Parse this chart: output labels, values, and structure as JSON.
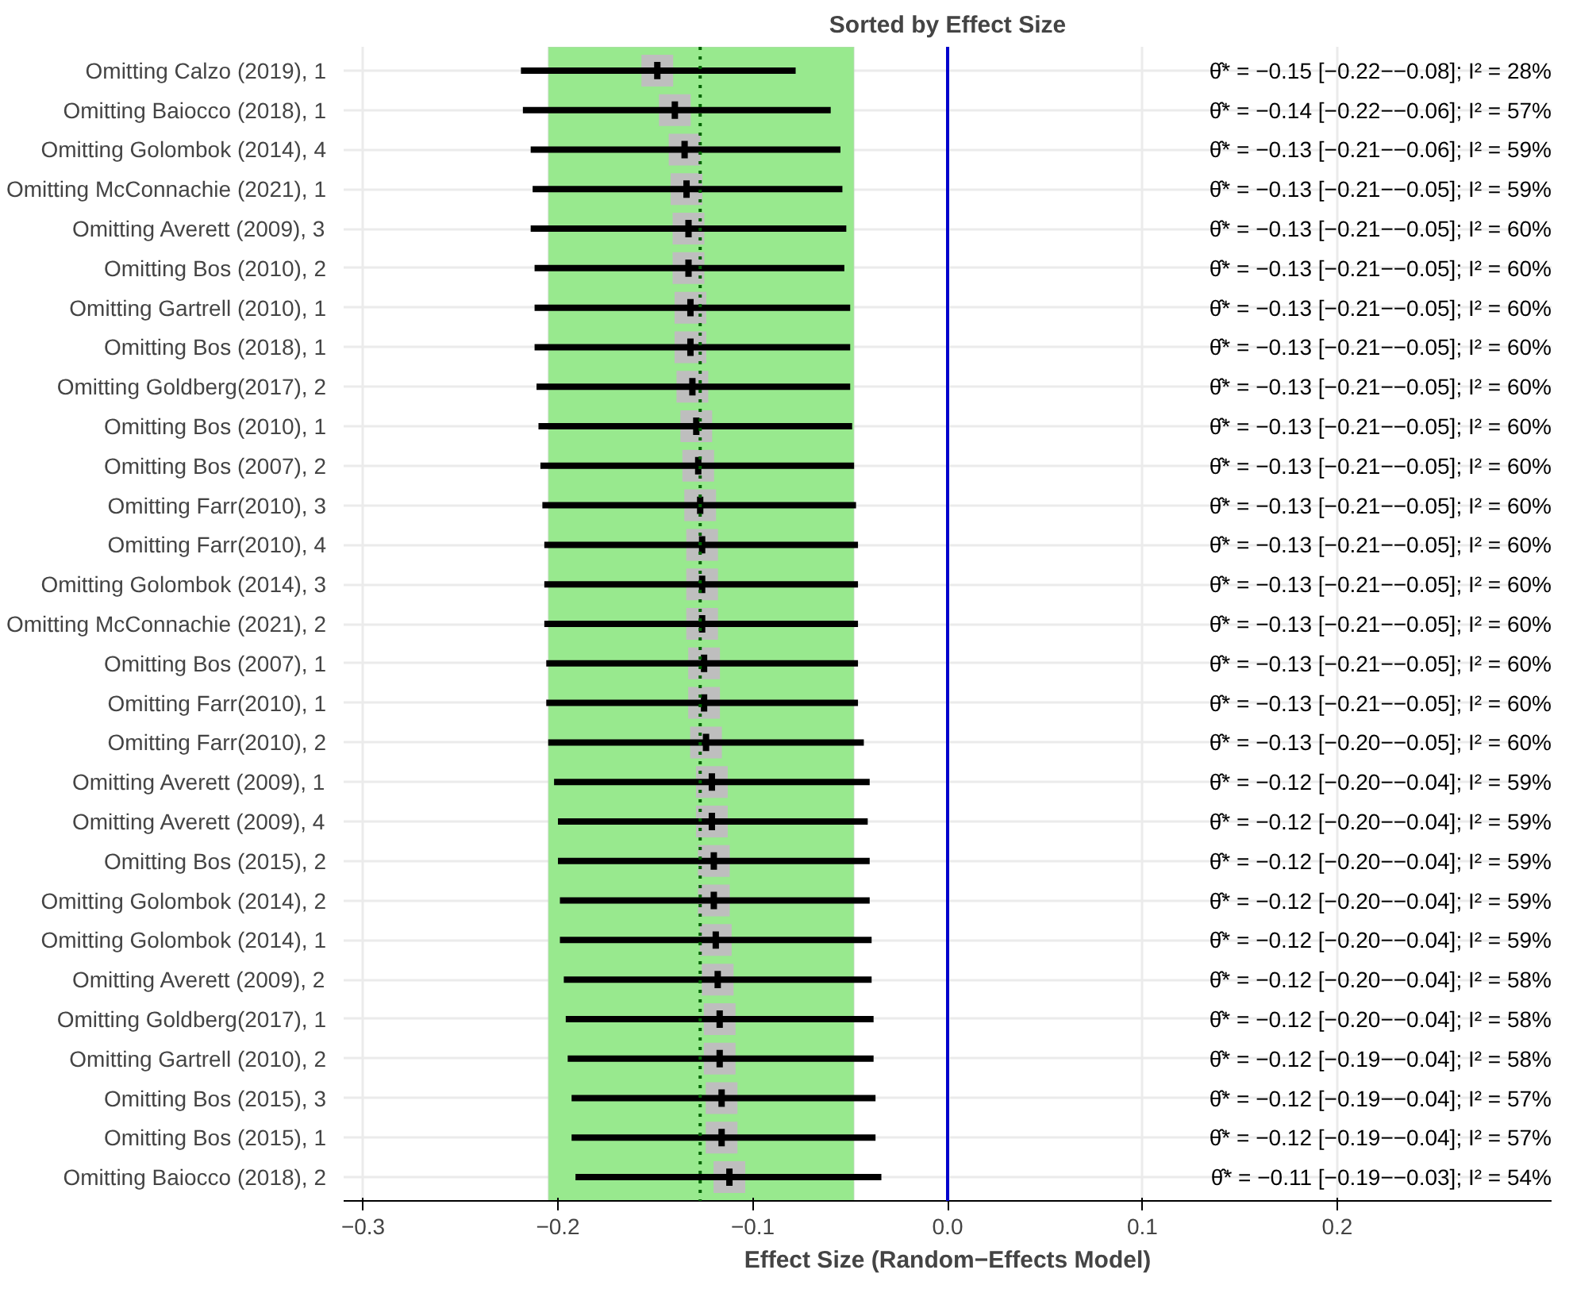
{
  "chart_data": {
    "type": "scatter",
    "orientation": "horizontal",
    "title": "Sorted by Effect Size",
    "xlabel": "Effect Size (Random−Effects Model)",
    "categories": [
      "Omitting Calzo (2019), 1",
      "Omitting Baiocco (2018), 1",
      "Omitting Golombok (2014), 4",
      "Omitting McConnachie (2021), 1",
      "Omitting Averett (2009), 3",
      "Omitting Bos (2010), 2",
      "Omitting Gartrell (2010), 1",
      "Omitting Bos (2018), 1",
      "Omitting Goldberg(2017), 2",
      "Omitting Bos (2010), 1",
      "Omitting Bos (2007), 2",
      "Omitting Farr(2010), 3",
      "Omitting Farr(2010), 4",
      "Omitting Golombok (2014), 3",
      "Omitting McConnachie (2021), 2",
      "Omitting Bos (2007), 1",
      "Omitting Farr(2010), 1",
      "Omitting Farr(2010), 2",
      "Omitting Averett (2009), 1",
      "Omitting Averett (2009), 4",
      "Omitting Bos (2015), 2",
      "Omitting Golombok (2014), 2",
      "Omitting Golombok (2014), 1",
      "Omitting Averett (2009), 2",
      "Omitting Goldberg(2017), 1",
      "Omitting Gartrell (2010), 2",
      "Omitting Bos (2015), 3",
      "Omitting Bos (2015), 1",
      "Omitting Baiocco (2018), 2"
    ],
    "values": [
      -0.149,
      -0.14,
      -0.135,
      -0.134,
      -0.133,
      -0.133,
      -0.132,
      -0.132,
      -0.131,
      -0.129,
      -0.128,
      -0.127,
      -0.126,
      -0.126,
      -0.126,
      -0.125,
      -0.125,
      -0.124,
      -0.121,
      -0.121,
      -0.12,
      -0.12,
      -0.119,
      -0.118,
      -0.117,
      -0.117,
      -0.116,
      -0.116,
      -0.112
    ],
    "errors": [
      [
        -0.219,
        -0.078
      ],
      [
        -0.218,
        -0.06
      ],
      [
        -0.214,
        -0.055
      ],
      [
        -0.213,
        -0.054
      ],
      [
        -0.214,
        -0.052
      ],
      [
        -0.212,
        -0.053
      ],
      [
        -0.212,
        -0.05
      ],
      [
        -0.212,
        -0.05
      ],
      [
        -0.211,
        -0.05
      ],
      [
        -0.21,
        -0.049
      ],
      [
        -0.209,
        -0.048
      ],
      [
        -0.208,
        -0.047
      ],
      [
        -0.207,
        -0.046
      ],
      [
        -0.207,
        -0.046
      ],
      [
        -0.207,
        -0.046
      ],
      [
        -0.206,
        -0.046
      ],
      [
        -0.206,
        -0.046
      ],
      [
        -0.205,
        -0.043
      ],
      [
        -0.202,
        -0.04
      ],
      [
        -0.2,
        -0.041
      ],
      [
        -0.2,
        -0.04
      ],
      [
        -0.199,
        -0.04
      ],
      [
        -0.199,
        -0.039
      ],
      [
        -0.197,
        -0.039
      ],
      [
        -0.196,
        -0.038
      ],
      [
        -0.195,
        -0.038
      ],
      [
        -0.193,
        -0.037
      ],
      [
        -0.193,
        -0.037
      ],
      [
        -0.191,
        -0.034
      ]
    ],
    "annotations": [
      "θ̂* = −0.15 [−0.22−−0.08]; I² = 28%",
      "θ̂* = −0.14 [−0.22−−0.06]; I² = 57%",
      "θ̂* = −0.13 [−0.21−−0.06]; I² = 59%",
      "θ̂* = −0.13 [−0.21−−0.05]; I² = 59%",
      "θ̂* = −0.13 [−0.21−−0.05]; I² = 60%",
      "θ̂* = −0.13 [−0.21−−0.05]; I² = 60%",
      "θ̂* = −0.13 [−0.21−−0.05]; I² = 60%",
      "θ̂* = −0.13 [−0.21−−0.05]; I² = 60%",
      "θ̂* = −0.13 [−0.21−−0.05]; I² = 60%",
      "θ̂* = −0.13 [−0.21−−0.05]; I² = 60%",
      "θ̂* = −0.13 [−0.21−−0.05]; I² = 60%",
      "θ̂* = −0.13 [−0.21−−0.05]; I² = 60%",
      "θ̂* = −0.13 [−0.21−−0.05]; I² = 60%",
      "θ̂* = −0.13 [−0.21−−0.05]; I² = 60%",
      "θ̂* = −0.13 [−0.21−−0.05]; I² = 60%",
      "θ̂* = −0.13 [−0.21−−0.05]; I² = 60%",
      "θ̂* = −0.13 [−0.21−−0.05]; I² = 60%",
      "θ̂* = −0.13 [−0.20−−0.05]; I² = 60%",
      "θ̂* = −0.12 [−0.20−−0.04]; I² = 59%",
      "θ̂* = −0.12 [−0.20−−0.04]; I² = 59%",
      "θ̂* = −0.12 [−0.20−−0.04]; I² = 59%",
      "θ̂* = −0.12 [−0.20−−0.04]; I² = 59%",
      "θ̂* = −0.12 [−0.20−−0.04]; I² = 59%",
      "θ̂* = −0.12 [−0.20−−0.04]; I² = 58%",
      "θ̂* = −0.12 [−0.20−−0.04]; I² = 58%",
      "θ̂* = −0.12 [−0.19−−0.04]; I² = 58%",
      "θ̂* = −0.12 [−0.19−−0.04]; I² = 57%",
      "θ̂* = −0.12 [−0.19−−0.04]; I² = 57%",
      "θ̂* = −0.11 [−0.19−−0.03]; I² = 54%"
    ],
    "color": "#bebebe",
    "marker": "square",
    "xlim": [
      -0.31,
      0.31
    ],
    "xticks": [
      {
        "value": -0.3,
        "label": "−0.3"
      },
      {
        "value": -0.2,
        "label": "−0.2"
      },
      {
        "value": -0.1,
        "label": "−0.1"
      },
      {
        "value": 0,
        "label": "0.0"
      },
      {
        "value": 0.1,
        "label": "0.1"
      },
      {
        "value": 0.2,
        "label": "0.2"
      }
    ],
    "bands": [
      {
        "axis": "x",
        "from": -0.205,
        "to": -0.048,
        "color": "#98e98e"
      }
    ],
    "ref_lines": [
      {
        "axis": "x",
        "value": 0,
        "color": "#0000cc",
        "line_style": "solid"
      },
      {
        "axis": "x",
        "value": -0.127,
        "color": "#006400",
        "line_style": "dotted"
      }
    ],
    "grid": true
  }
}
